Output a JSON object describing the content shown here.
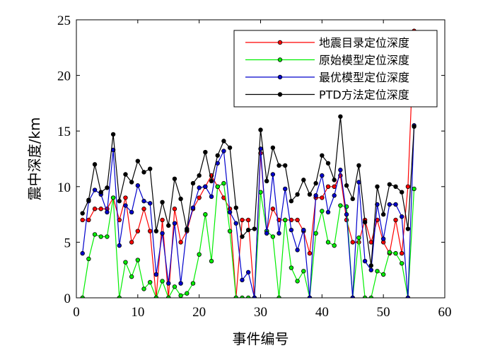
{
  "chart_data": {
    "type": "line",
    "xlabel": "事件编号",
    "ylabel": "震中深度/km",
    "xlim": [
      0,
      60
    ],
    "ylim": [
      0,
      25
    ],
    "xticks": [
      0,
      10,
      20,
      30,
      40,
      50,
      60
    ],
    "yticks": [
      0,
      5,
      10,
      15,
      20,
      25
    ],
    "grid": false,
    "legend_position": "top-right",
    "series": [
      {
        "name": "地震目录定位深度",
        "color": "#ff0000",
        "x": [
          1,
          2,
          3,
          4,
          5,
          6,
          7,
          8,
          9,
          10,
          11,
          12,
          13,
          14,
          15,
          16,
          17,
          18,
          19,
          20,
          21,
          22,
          23,
          24,
          25,
          26,
          27,
          28,
          29,
          30,
          31,
          32,
          33,
          34,
          35,
          36,
          37,
          38,
          39,
          40,
          41,
          42,
          43,
          44,
          45,
          46,
          47,
          48,
          49,
          50,
          51,
          52,
          53,
          54,
          55
        ],
        "values": [
          7,
          7,
          8,
          8,
          8,
          9,
          7,
          9,
          5,
          6,
          8,
          6,
          0,
          7,
          0,
          8,
          5,
          6,
          8,
          9,
          10,
          11,
          10,
          9,
          8,
          0,
          7,
          7,
          0,
          13,
          6,
          8,
          7,
          7,
          7,
          7,
          6,
          4,
          9,
          9,
          10,
          10,
          11,
          7,
          5,
          5,
          7,
          5,
          7,
          5,
          4,
          7,
          4,
          10,
          24
        ]
      },
      {
        "name": "原始模型定位深度",
        "color": "#00ee00",
        "x": [
          1,
          2,
          3,
          4,
          5,
          6,
          7,
          8,
          9,
          10,
          11,
          12,
          13,
          14,
          15,
          16,
          17,
          18,
          19,
          20,
          21,
          22,
          23,
          24,
          25,
          26,
          27,
          28,
          29,
          30,
          31,
          32,
          33,
          34,
          35,
          36,
          37,
          38,
          39,
          40,
          41,
          42,
          43,
          44,
          45,
          46,
          47,
          48,
          49,
          50,
          51,
          52,
          53,
          54,
          55
        ],
        "values": [
          0,
          3.5,
          5.7,
          5.5,
          5.5,
          9,
          0,
          3.2,
          1.9,
          3.4,
          0.8,
          1.4,
          0,
          1.5,
          0,
          1,
          0.2,
          0.4,
          1.3,
          3.9,
          7.5,
          3.3,
          10,
          10.3,
          6,
          0,
          0,
          0,
          0,
          9.5,
          6,
          5.5,
          0,
          7,
          2.7,
          1.5,
          2.4,
          0,
          5.8,
          7.8,
          5,
          4.7,
          8.3,
          8.2,
          0,
          5.4,
          0,
          0,
          2.4,
          2.1,
          4.1,
          4,
          3.1,
          0,
          9.8
        ]
      },
      {
        "name": "最优模型定位深度",
        "color": "#0000cc",
        "x": [
          1,
          2,
          3,
          4,
          5,
          6,
          7,
          8,
          9,
          10,
          11,
          12,
          13,
          14,
          15,
          16,
          17,
          18,
          19,
          20,
          21,
          22,
          23,
          24,
          25,
          26,
          27,
          28,
          29,
          30,
          31,
          32,
          33,
          34,
          35,
          36,
          37,
          38,
          39,
          40,
          41,
          42,
          43,
          44,
          45,
          46,
          47,
          48,
          49,
          50,
          51,
          52,
          53,
          54,
          55
        ],
        "values": [
          4,
          8.7,
          9.7,
          9.3,
          7.7,
          13.3,
          4.7,
          8.3,
          7.7,
          10.1,
          8.7,
          8.5,
          2.1,
          5.8,
          1.3,
          6.7,
          1.3,
          6.2,
          8.1,
          9.9,
          10,
          9.1,
          12.1,
          13.2,
          7.7,
          6.7,
          1.6,
          2.3,
          0,
          13.4,
          5.8,
          11.1,
          5.8,
          9.8,
          6.1,
          4.3,
          6.1,
          0,
          9.2,
          11,
          7.7,
          9.2,
          11.5,
          7.5,
          0,
          10.4,
          3.3,
          2.5,
          8.4,
          5.3,
          8.4,
          8.4,
          7.3,
          0,
          15.5
        ]
      },
      {
        "name": "PTD方法定位深度",
        "color": "#000000",
        "x": [
          1,
          2,
          3,
          4,
          5,
          6,
          7,
          8,
          9,
          10,
          11,
          12,
          13,
          14,
          15,
          16,
          17,
          18,
          19,
          20,
          21,
          22,
          23,
          24,
          25,
          26,
          27,
          28,
          29,
          30,
          31,
          32,
          33,
          34,
          35,
          36,
          37,
          38,
          39,
          40,
          41,
          42,
          43,
          44,
          45,
          46,
          47,
          48,
          49,
          50,
          51,
          52,
          53,
          54,
          55
        ],
        "values": [
          7.6,
          8.8,
          12,
          9.5,
          9.9,
          14.7,
          8.7,
          11.1,
          10.4,
          12.3,
          11.3,
          11.6,
          6,
          8.6,
          6.5,
          10.7,
          8.9,
          6.1,
          10.3,
          11,
          13.1,
          10.5,
          12.8,
          14.1,
          13.5,
          8.1,
          5.5,
          6.1,
          6.2,
          15.1,
          10.5,
          13.5,
          11.9,
          11.9,
          8.7,
          9.3,
          10.6,
          9.3,
          10.3,
          12.8,
          12.1,
          10.6,
          16.3,
          10.1,
          8.9,
          11.9,
          6.8,
          2.9,
          10,
          7.5,
          10.2,
          10,
          9.5,
          6.2,
          15.4
        ]
      }
    ]
  }
}
